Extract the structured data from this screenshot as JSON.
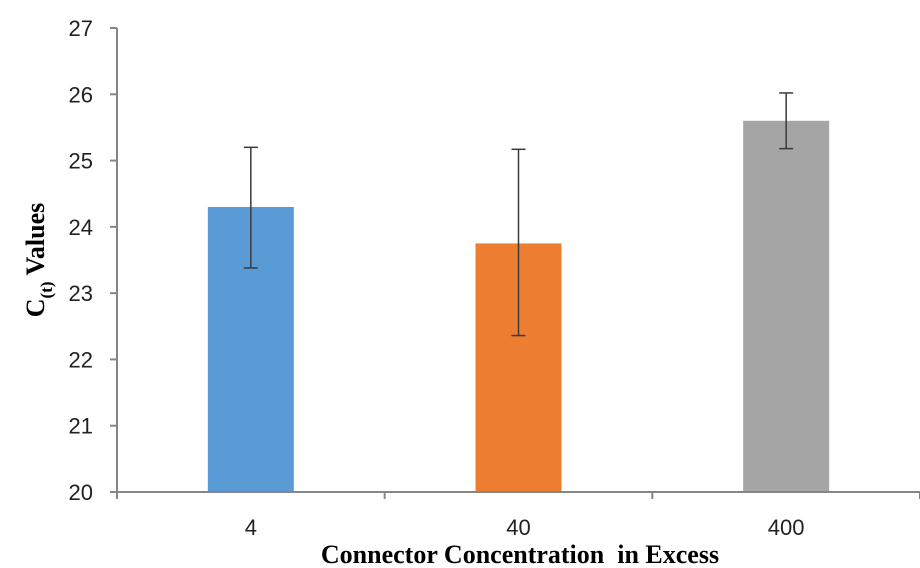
{
  "chart_data": {
    "type": "bar",
    "title": "",
    "xlabel": "Connector Concentration  in Excess",
    "ylabel": {
      "main": "C",
      "subscript": "(t)",
      "suffix": " Values"
    },
    "categories": [
      "4",
      "40",
      "400"
    ],
    "values": [
      24.3,
      23.75,
      25.6
    ],
    "error_low": [
      23.38,
      22.36,
      25.18
    ],
    "error_high": [
      25.2,
      25.17,
      26.02
    ],
    "colors": [
      "#5b9bd5",
      "#ed7d31",
      "#a5a5a5"
    ],
    "ylim": [
      20,
      27
    ],
    "yticks": [
      "20",
      "21",
      "22",
      "23",
      "24",
      "25",
      "26",
      "27"
    ],
    "grid": false,
    "legend": "none"
  }
}
